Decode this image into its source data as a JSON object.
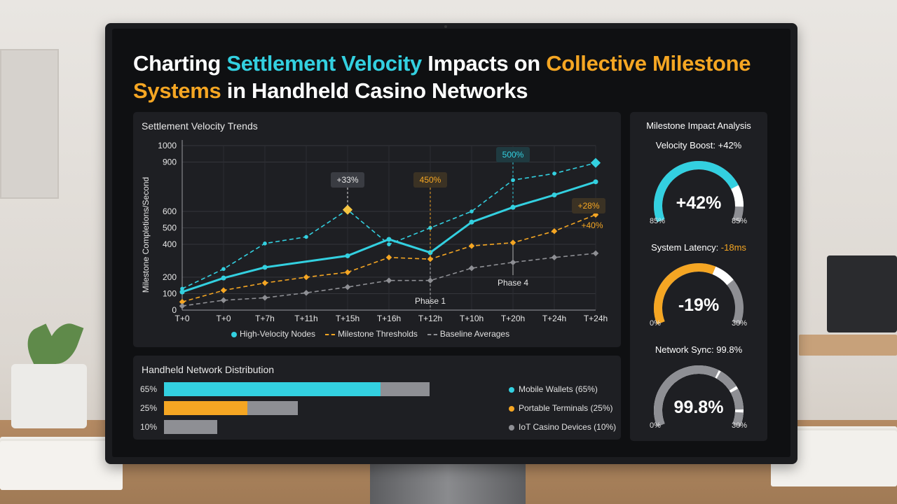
{
  "page": {
    "title_parts": [
      {
        "text": "Charting ",
        "accent": "white"
      },
      {
        "text": "Settlement Velocity",
        "accent": "cyan"
      },
      {
        "text": " Impacts on ",
        "accent": "white"
      },
      {
        "text": "Collective Milestone Systems",
        "accent": "orange"
      },
      {
        "text": " in Handheld Casino Networks",
        "accent": "white"
      }
    ]
  },
  "colors": {
    "cyan": "#33d0e0",
    "orange": "#f5a623",
    "gray": "#8e8f94",
    "panel": "#1e1f23"
  },
  "chart_data": {
    "type": "line",
    "title": "Settlement Velocity Trends",
    "ylabel": "Milestone Completions/Second",
    "ylim": [
      0,
      1000
    ],
    "yticks": [
      0,
      100,
      200,
      400,
      500,
      600,
      900,
      1000
    ],
    "categories": [
      "T+0",
      "T+0",
      "T+7h",
      "T+11h",
      "T+15h",
      "T+16h",
      "T+12h",
      "T+10h",
      "T+20h",
      "T+24h",
      "T+24h"
    ],
    "series": [
      {
        "name": "High-Velocity Nodes",
        "color": "#33d0e0",
        "dash": false,
        "values": [
          110,
          195,
          260,
          null,
          330,
          430,
          350,
          535,
          625,
          700,
          780
        ]
      },
      {
        "name": "High-Velocity Nodes (upper)",
        "legend": false,
        "color": "#33d0e0",
        "dash": true,
        "values": [
          130,
          250,
          405,
          445,
          610,
          400,
          500,
          600,
          790,
          830,
          895
        ]
      },
      {
        "name": "Milestone Thresholds",
        "color": "#f5a623",
        "dash": true,
        "values": [
          50,
          120,
          165,
          200,
          230,
          320,
          310,
          390,
          410,
          480,
          580
        ]
      },
      {
        "name": "Baseline Averages",
        "color": "#8e8f94",
        "dash": true,
        "values": [
          25,
          60,
          75,
          105,
          140,
          180,
          180,
          255,
          290,
          320,
          345
        ]
      }
    ],
    "annotations": [
      {
        "text": "+33%",
        "color": "#e6e6e6"
      },
      {
        "text": "450%",
        "color": "#f5a623"
      },
      {
        "text": "500%",
        "color": "#33d0e0"
      },
      {
        "text": "+28%",
        "color": "#f5a623"
      },
      {
        "text": "+40%",
        "color": "#f5a623"
      },
      {
        "text": "Phase 1",
        "color": "#e6e6e6"
      },
      {
        "text": "Phase 4",
        "color": "#e6e6e6"
      }
    ],
    "legend_position": "bottom"
  },
  "distribution": {
    "title": "Handheld Network Distribution",
    "rows": [
      {
        "label": "65%",
        "value": 65,
        "color": "#33d0e0"
      },
      {
        "label": "25%",
        "value": 25,
        "color": "#f5a623"
      },
      {
        "label": "10%",
        "value": 10,
        "color": "#8e8f94"
      }
    ],
    "legend": [
      {
        "label": "Mobile Wallets (65%)",
        "color": "#33d0e0"
      },
      {
        "label": "Portable Terminals (25%)",
        "color": "#f5a623"
      },
      {
        "label": "IoT Casino Devices (10%)",
        "color": "#8e8f94"
      }
    ]
  },
  "milestone": {
    "title": "Milestone Impact Analysis",
    "gauges": [
      {
        "label_prefix": "Velocity Boost: ",
        "label_value": "+42%",
        "value_text": "+42%",
        "fill": 0.78,
        "color": "#33d0e0",
        "min": "85%",
        "max": "85%"
      },
      {
        "label_prefix": "System Latency: ",
        "label_value": "-18ms",
        "value_text": "-19%",
        "fill": 0.6,
        "color": "#f5a623",
        "min": "0%",
        "max": "30%"
      },
      {
        "label_prefix": "Network Sync: ",
        "label_value": "99.8%",
        "value_text": "99.8%",
        "fill": 0.62,
        "color": "#8e8f94",
        "min": "0%",
        "max": "30%"
      }
    ]
  }
}
